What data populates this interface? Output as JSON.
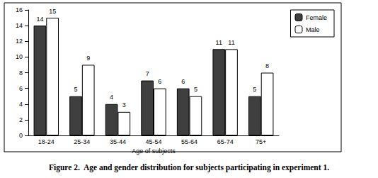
{
  "chart_data": {
    "type": "bar",
    "title": "Figure 2.  Age and gender distribution for subjects participating in experiment 1.",
    "x_label": "Age of subjects",
    "categories": [
      "18-24",
      "25-34",
      "35-44",
      "45-54",
      "55-64",
      "65-74",
      "75+"
    ],
    "series": [
      {
        "name": "Female",
        "color": "#3f3f3f",
        "values": [
          14,
          5,
          4,
          7,
          6,
          11,
          5
        ]
      },
      {
        "name": "Male",
        "color": "#ffffff",
        "values": [
          15,
          9,
          3,
          6,
          5,
          11,
          8
        ]
      }
    ],
    "ylim": [
      0,
      16
    ],
    "yticks": [
      0,
      2,
      4,
      6,
      8,
      10,
      12,
      14,
      16
    ],
    "grid": false,
    "legend": "upper right",
    "data_labels": true
  }
}
